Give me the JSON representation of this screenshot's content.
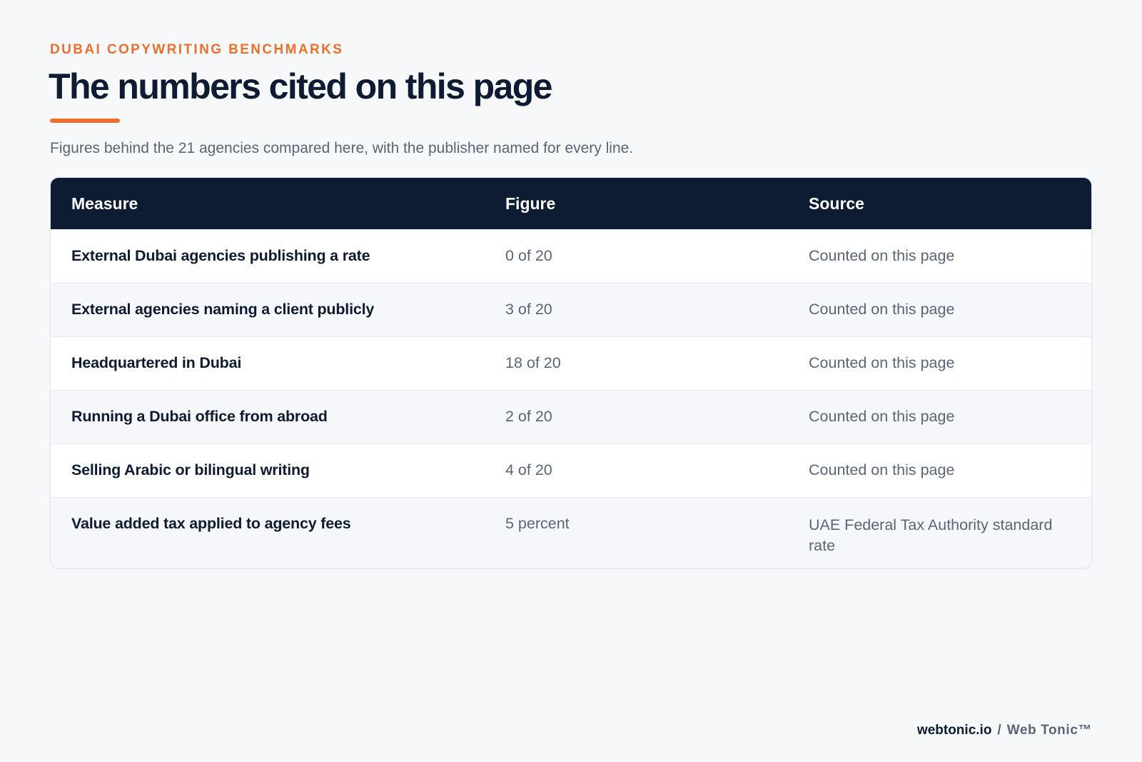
{
  "header": {
    "eyebrow": "DUBAI COPYWRITING BENCHMARKS",
    "title": "The numbers cited on this page",
    "subtitle": "Figures behind the 21 agencies compared here, with the publisher named for every line.",
    "accent_color": "#ee6f2d"
  },
  "table": {
    "columns": [
      "Measure",
      "Figure",
      "Source"
    ],
    "rows": [
      {
        "measure": "External Dubai agencies publishing a rate",
        "figure": "0 of 20",
        "source": "Counted on this page"
      },
      {
        "measure": "External agencies naming a client publicly",
        "figure": "3 of 20",
        "source": "Counted on this page"
      },
      {
        "measure": "Headquartered in Dubai",
        "figure": "18 of 20",
        "source": "Counted on this page"
      },
      {
        "measure": "Running a Dubai office from abroad",
        "figure": "2 of 20",
        "source": "Counted on this page"
      },
      {
        "measure": "Selling Arabic or bilingual writing",
        "figure": "4 of 20",
        "source": "Counted on this page"
      },
      {
        "measure": "Value added tax applied to agency fees",
        "figure": "5 percent",
        "source": "UAE Federal Tax Authority standard rate"
      }
    ],
    "header_color": "#0d1b33"
  },
  "footer": {
    "domain": "webtonic.io",
    "separator": "/",
    "brand": "Web Tonic™"
  }
}
